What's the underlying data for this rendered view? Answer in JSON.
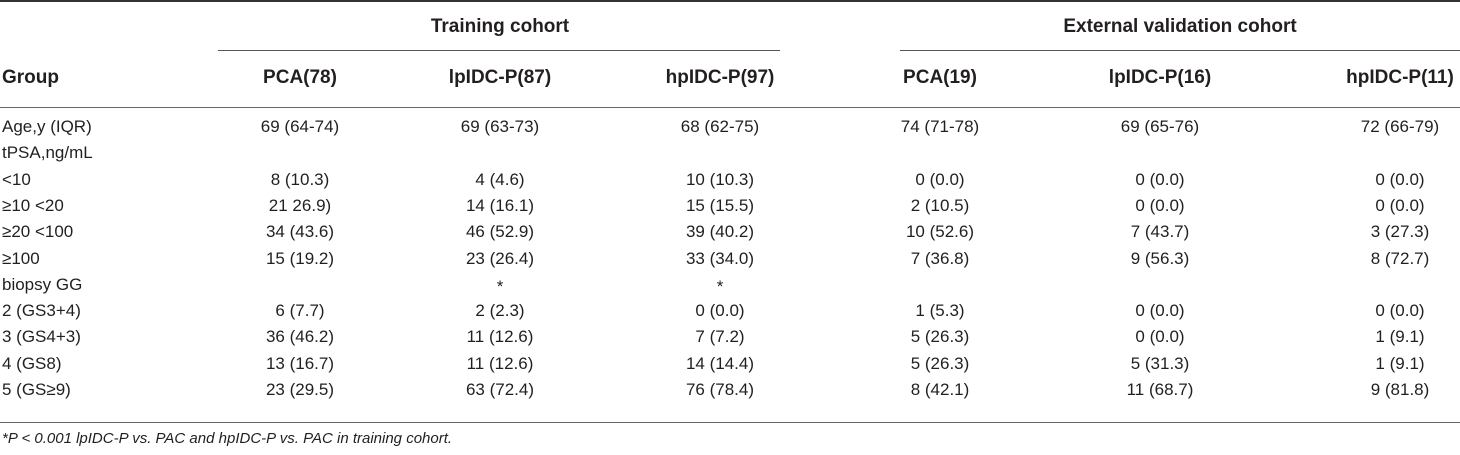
{
  "table": {
    "group_headers": [
      "Training cohort",
      "External validation cohort"
    ],
    "columns": [
      "Group",
      "PCA(78)",
      "lpIDC-P(87)",
      "hpIDC-P(97)",
      "PCA(19)",
      "lpIDC-P(16)",
      "hpIDC-P(11)"
    ],
    "rows": [
      [
        "Age,y (IQR)",
        "69 (64-74)",
        "69 (63-73)",
        "68 (62-75)",
        "74 (71-78)",
        "69 (65-76)",
        "72 (66-79)"
      ],
      [
        "tPSA,ng/mL",
        "",
        "",
        "",
        "",
        "",
        ""
      ],
      [
        "<10",
        "8 (10.3)",
        "4 (4.6)",
        "10 (10.3)",
        "0 (0.0)",
        "0 (0.0)",
        "0 (0.0)"
      ],
      [
        "≥10 <20",
        "21 26.9)",
        "14 (16.1)",
        "15 (15.5)",
        "2 (10.5)",
        "0 (0.0)",
        "0 (0.0)"
      ],
      [
        "≥20 <100",
        "34 (43.6)",
        "46 (52.9)",
        "39 (40.2)",
        "10 (52.6)",
        "7 (43.7)",
        "3 (27.3)"
      ],
      [
        "≥100",
        "15 (19.2)",
        "23 (26.4)",
        "33 (34.0)",
        "7 (36.8)",
        "9 (56.3)",
        "8 (72.7)"
      ],
      [
        "biopsy GG",
        "",
        "*",
        "*",
        "",
        "",
        ""
      ],
      [
        "2 (GS3+4)",
        "6 (7.7)",
        "2 (2.3)",
        "0 (0.0)",
        "1 (5.3)",
        "0 (0.0)",
        "0 (0.0)"
      ],
      [
        "3 (GS4+3)",
        "36 (46.2)",
        "11 (12.6)",
        "7 (7.2)",
        "5 (26.3)",
        "0 (0.0)",
        "1 (9.1)"
      ],
      [
        "4 (GS8)",
        "13 (16.7)",
        "11 (12.6)",
        "14 (14.4)",
        "5 (26.3)",
        "5 (31.3)",
        "1 (9.1)"
      ],
      [
        "5 (GS≥9)",
        "23 (29.5)",
        "63 (72.4)",
        "76 (78.4)",
        "8 (42.1)",
        "11 (68.7)",
        "9 (81.8)"
      ]
    ],
    "footnote": "*P < 0.001 lpIDC-P vs. PAC and hpIDC-P vs. PAC in training cohort."
  }
}
